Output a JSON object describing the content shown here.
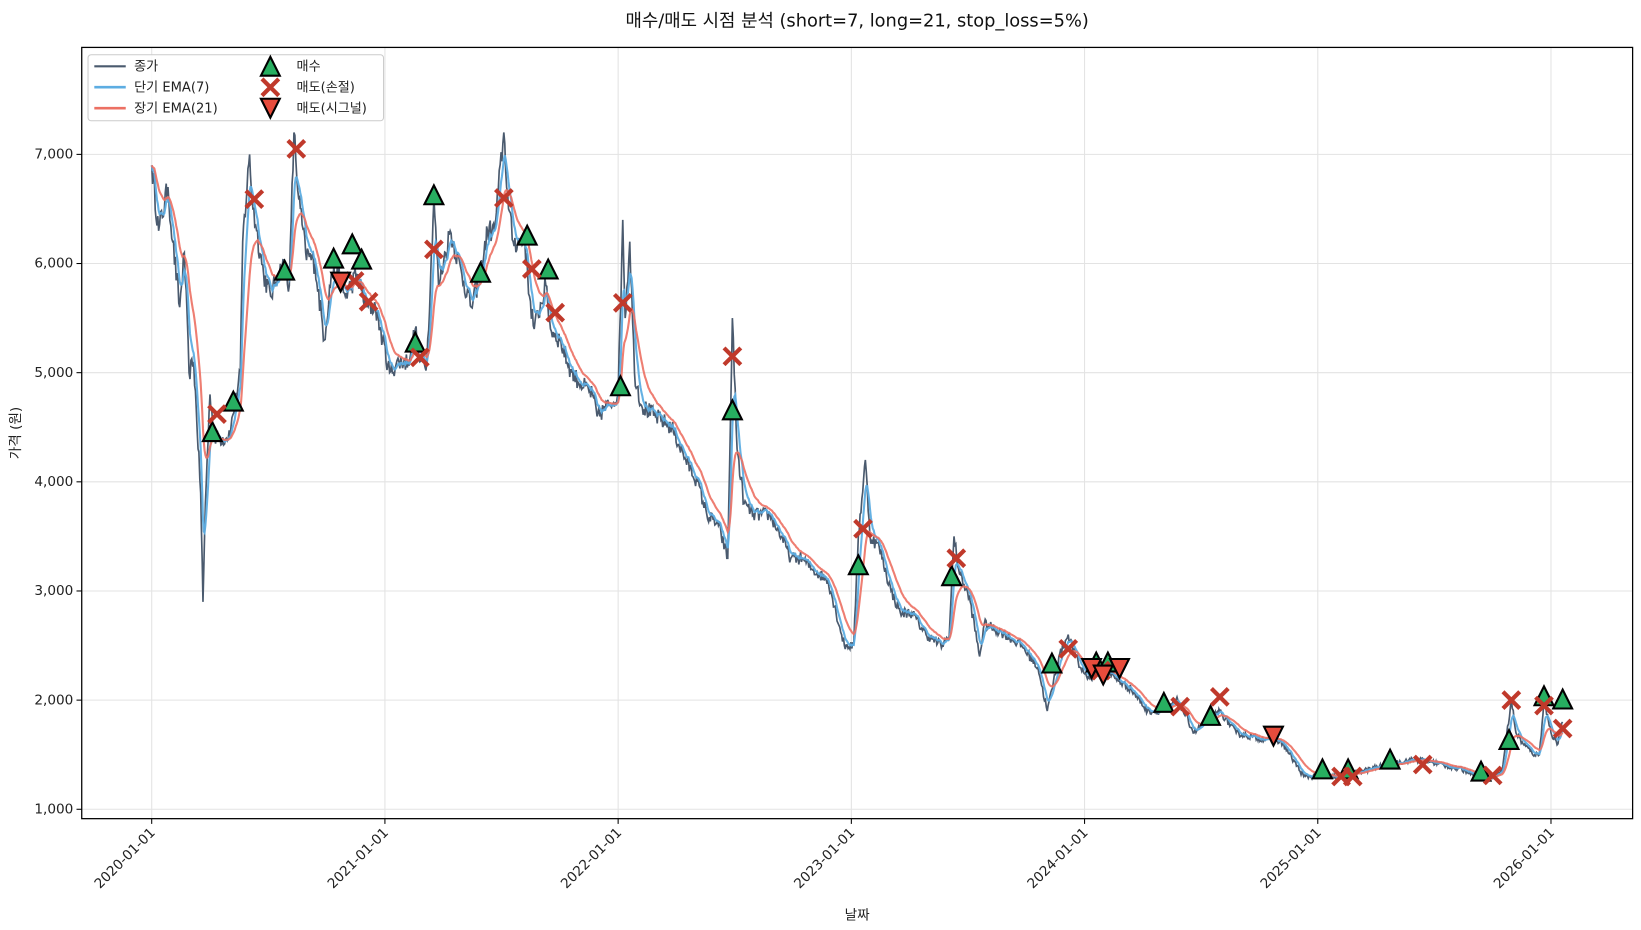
{
  "chart_data": {
    "type": "line",
    "title": "매수/매도 시점 분석 (short=7, long=21, stop_loss=5%)",
    "xlabel": "날짜",
    "ylabel": "가격 (원)",
    "x_unit": "decimal year",
    "xlim": [
      2019.7,
      2026.35
    ],
    "ylim": [
      914,
      7980
    ],
    "grid": true,
    "legend_position": "top-left",
    "x_ticks": [
      2020,
      2021,
      2022,
      2023,
      2024,
      2025,
      2026
    ],
    "x_tick_labels": [
      "2020-01-01",
      "2021-01-01",
      "2022-01-01",
      "2023-01-01",
      "2024-01-01",
      "2025-01-01",
      "2026-01-01"
    ],
    "y_ticks": [
      1000,
      2000,
      3000,
      4000,
      5000,
      6000,
      7000
    ],
    "y_tick_labels": [
      "1,000",
      "2,000",
      "3,000",
      "4,000",
      "5,000",
      "6,000",
      "7,000"
    ],
    "ema_short": 7,
    "ema_long": 21,
    "legend": {
      "close": "종가",
      "ema_short": "단기 EMA(7)",
      "ema_long": "장기 EMA(21)",
      "buy": "매수",
      "sell_stop": "매도(손절)",
      "sell_signal": "매도(시그널)"
    },
    "colors": {
      "close": "#4a5a6e",
      "ema_short": "#5dade2",
      "ema_long": "#ec7063",
      "buy": "#27ae60",
      "sell_stop": "#c0392b",
      "sell_signal": "#e74c3c"
    },
    "close_anchors": [
      [
        2020.0,
        6900
      ],
      [
        2020.03,
        6300
      ],
      [
        2020.07,
        6700
      ],
      [
        2020.09,
        6200
      ],
      [
        2020.12,
        5600
      ],
      [
        2020.14,
        6100
      ],
      [
        2020.16,
        5000
      ],
      [
        2020.18,
        5100
      ],
      [
        2020.21,
        3900
      ],
      [
        2020.22,
        2900
      ],
      [
        2020.23,
        3800
      ],
      [
        2020.25,
        4800
      ],
      [
        2020.27,
        4400
      ],
      [
        2020.32,
        4400
      ],
      [
        2020.34,
        4500
      ],
      [
        2020.38,
        5000
      ],
      [
        2020.39,
        6200
      ],
      [
        2020.42,
        7000
      ],
      [
        2020.43,
        6600
      ],
      [
        2020.45,
        6300
      ],
      [
        2020.48,
        5900
      ],
      [
        2020.51,
        5700
      ],
      [
        2020.54,
        5900
      ],
      [
        2020.57,
        6000
      ],
      [
        2020.59,
        5800
      ],
      [
        2020.61,
        7200
      ],
      [
        2020.63,
        6600
      ],
      [
        2020.66,
        6100
      ],
      [
        2020.7,
        6000
      ],
      [
        2020.74,
        5300
      ],
      [
        2020.77,
        5900
      ],
      [
        2020.8,
        5900
      ],
      [
        2020.83,
        5700
      ],
      [
        2020.88,
        5900
      ],
      [
        2020.92,
        5600
      ],
      [
        2020.96,
        5600
      ],
      [
        2020.99,
        5300
      ],
      [
        2021.02,
        5000
      ],
      [
        2021.06,
        5100
      ],
      [
        2021.1,
        5100
      ],
      [
        2021.13,
        5400
      ],
      [
        2021.15,
        5100
      ],
      [
        2021.18,
        5100
      ],
      [
        2021.21,
        6600
      ],
      [
        2021.23,
        5800
      ],
      [
        2021.26,
        6100
      ],
      [
        2021.28,
        6300
      ],
      [
        2021.33,
        5900
      ],
      [
        2021.37,
        5600
      ],
      [
        2021.41,
        5900
      ],
      [
        2021.44,
        6300
      ],
      [
        2021.47,
        6300
      ],
      [
        2021.51,
        7200
      ],
      [
        2021.53,
        6500
      ],
      [
        2021.55,
        6200
      ],
      [
        2021.6,
        6200
      ],
      [
        2021.62,
        5700
      ],
      [
        2021.64,
        5400
      ],
      [
        2021.69,
        5800
      ],
      [
        2021.71,
        5400
      ],
      [
        2021.75,
        5300
      ],
      [
        2021.8,
        5000
      ],
      [
        2021.84,
        4900
      ],
      [
        2021.89,
        4800
      ],
      [
        2021.91,
        4600
      ],
      [
        2021.96,
        4700
      ],
      [
        2022.0,
        4800
      ],
      [
        2022.02,
        6400
      ],
      [
        2022.03,
        5500
      ],
      [
        2022.05,
        6200
      ],
      [
        2022.07,
        5000
      ],
      [
        2022.1,
        4700
      ],
      [
        2022.16,
        4600
      ],
      [
        2022.23,
        4500
      ],
      [
        2022.29,
        4200
      ],
      [
        2022.34,
        4000
      ],
      [
        2022.38,
        3700
      ],
      [
        2022.43,
        3600
      ],
      [
        2022.47,
        3300
      ],
      [
        2022.49,
        5500
      ],
      [
        2022.51,
        4300
      ],
      [
        2022.54,
        3800
      ],
      [
        2022.58,
        3700
      ],
      [
        2022.65,
        3700
      ],
      [
        2022.7,
        3500
      ],
      [
        2022.74,
        3300
      ],
      [
        2022.79,
        3300
      ],
      [
        2022.83,
        3200
      ],
      [
        2022.9,
        3100
      ],
      [
        2022.97,
        2500
      ],
      [
        2023.01,
        2500
      ],
      [
        2023.03,
        3500
      ],
      [
        2023.06,
        4200
      ],
      [
        2023.08,
        3500
      ],
      [
        2023.12,
        3400
      ],
      [
        2023.17,
        3000
      ],
      [
        2023.21,
        2800
      ],
      [
        2023.26,
        2800
      ],
      [
        2023.32,
        2600
      ],
      [
        2023.39,
        2500
      ],
      [
        2023.42,
        2600
      ],
      [
        2023.44,
        3500
      ],
      [
        2023.46,
        3200
      ],
      [
        2023.51,
        2900
      ],
      [
        2023.55,
        2400
      ],
      [
        2023.57,
        2700
      ],
      [
        2023.66,
        2600
      ],
      [
        2023.73,
        2500
      ],
      [
        2023.8,
        2300
      ],
      [
        2023.84,
        1900
      ],
      [
        2023.89,
        2400
      ],
      [
        2023.93,
        2600
      ],
      [
        2023.98,
        2300
      ],
      [
        2024.02,
        2200
      ],
      [
        2024.09,
        2300
      ],
      [
        2024.13,
        2200
      ],
      [
        2024.2,
        2100
      ],
      [
        2024.27,
        1900
      ],
      [
        2024.34,
        1900
      ],
      [
        2024.4,
        2000
      ],
      [
        2024.47,
        1700
      ],
      [
        2024.52,
        1800
      ],
      [
        2024.58,
        1900
      ],
      [
        2024.65,
        1700
      ],
      [
        2024.74,
        1650
      ],
      [
        2024.81,
        1650
      ],
      [
        2024.85,
        1600
      ],
      [
        2024.94,
        1300
      ],
      [
        2025.01,
        1300
      ],
      [
        2025.1,
        1300
      ],
      [
        2025.19,
        1350
      ],
      [
        2025.28,
        1400
      ],
      [
        2025.39,
        1450
      ],
      [
        2025.46,
        1450
      ],
      [
        2025.55,
        1400
      ],
      [
        2025.64,
        1350
      ],
      [
        2025.73,
        1280
      ],
      [
        2025.79,
        1350
      ],
      [
        2025.83,
        2000
      ],
      [
        2025.85,
        1700
      ],
      [
        2025.88,
        1600
      ],
      [
        2025.93,
        1500
      ],
      [
        2025.95,
        1500
      ],
      [
        2025.97,
        2000
      ],
      [
        2026.0,
        1700
      ],
      [
        2026.03,
        1600
      ],
      [
        2026.05,
        1800
      ]
    ],
    "buy_points": [
      [
        2020.26,
        4450
      ],
      [
        2020.35,
        4730
      ],
      [
        2020.57,
        5930
      ],
      [
        2020.78,
        6040
      ],
      [
        2020.86,
        6170
      ],
      [
        2020.9,
        6030
      ],
      [
        2021.13,
        5270
      ],
      [
        2021.21,
        6620
      ],
      [
        2021.41,
        5910
      ],
      [
        2021.61,
        6250
      ],
      [
        2021.7,
        5940
      ],
      [
        2022.01,
        4870
      ],
      [
        2022.49,
        4650
      ],
      [
        2023.03,
        3230
      ],
      [
        2023.43,
        3130
      ],
      [
        2023.86,
        2330
      ],
      [
        2024.05,
        2340
      ],
      [
        2024.1,
        2340
      ],
      [
        2024.34,
        1970
      ],
      [
        2024.54,
        1850
      ],
      [
        2025.02,
        1360
      ],
      [
        2025.13,
        1360
      ],
      [
        2025.31,
        1450
      ],
      [
        2025.7,
        1340
      ],
      [
        2025.82,
        1630
      ],
      [
        2025.97,
        2030
      ],
      [
        2026.05,
        2000
      ]
    ],
    "sell_stop_points": [
      [
        2020.28,
        4620
      ],
      [
        2020.44,
        6590
      ],
      [
        2020.62,
        7050
      ],
      [
        2020.87,
        5840
      ],
      [
        2020.93,
        5650
      ],
      [
        2021.15,
        5140
      ],
      [
        2021.21,
        6130
      ],
      [
        2021.51,
        6600
      ],
      [
        2021.63,
        5950
      ],
      [
        2021.73,
        5550
      ],
      [
        2022.02,
        5640
      ],
      [
        2022.49,
        5150
      ],
      [
        2023.05,
        3570
      ],
      [
        2023.45,
        3300
      ],
      [
        2023.93,
        2470
      ],
      [
        2024.07,
        2270
      ],
      [
        2024.41,
        1940
      ],
      [
        2024.58,
        2030
      ],
      [
        2025.1,
        1300
      ],
      [
        2025.15,
        1300
      ],
      [
        2025.45,
        1410
      ],
      [
        2025.75,
        1310
      ],
      [
        2025.83,
        2000
      ],
      [
        2025.97,
        1950
      ],
      [
        2026.05,
        1740
      ]
    ],
    "sell_signal_points": [
      [
        2020.81,
        5840
      ],
      [
        2024.03,
        2300
      ],
      [
        2024.08,
        2240
      ],
      [
        2024.15,
        2300
      ],
      [
        2024.81,
        1680
      ]
    ]
  }
}
